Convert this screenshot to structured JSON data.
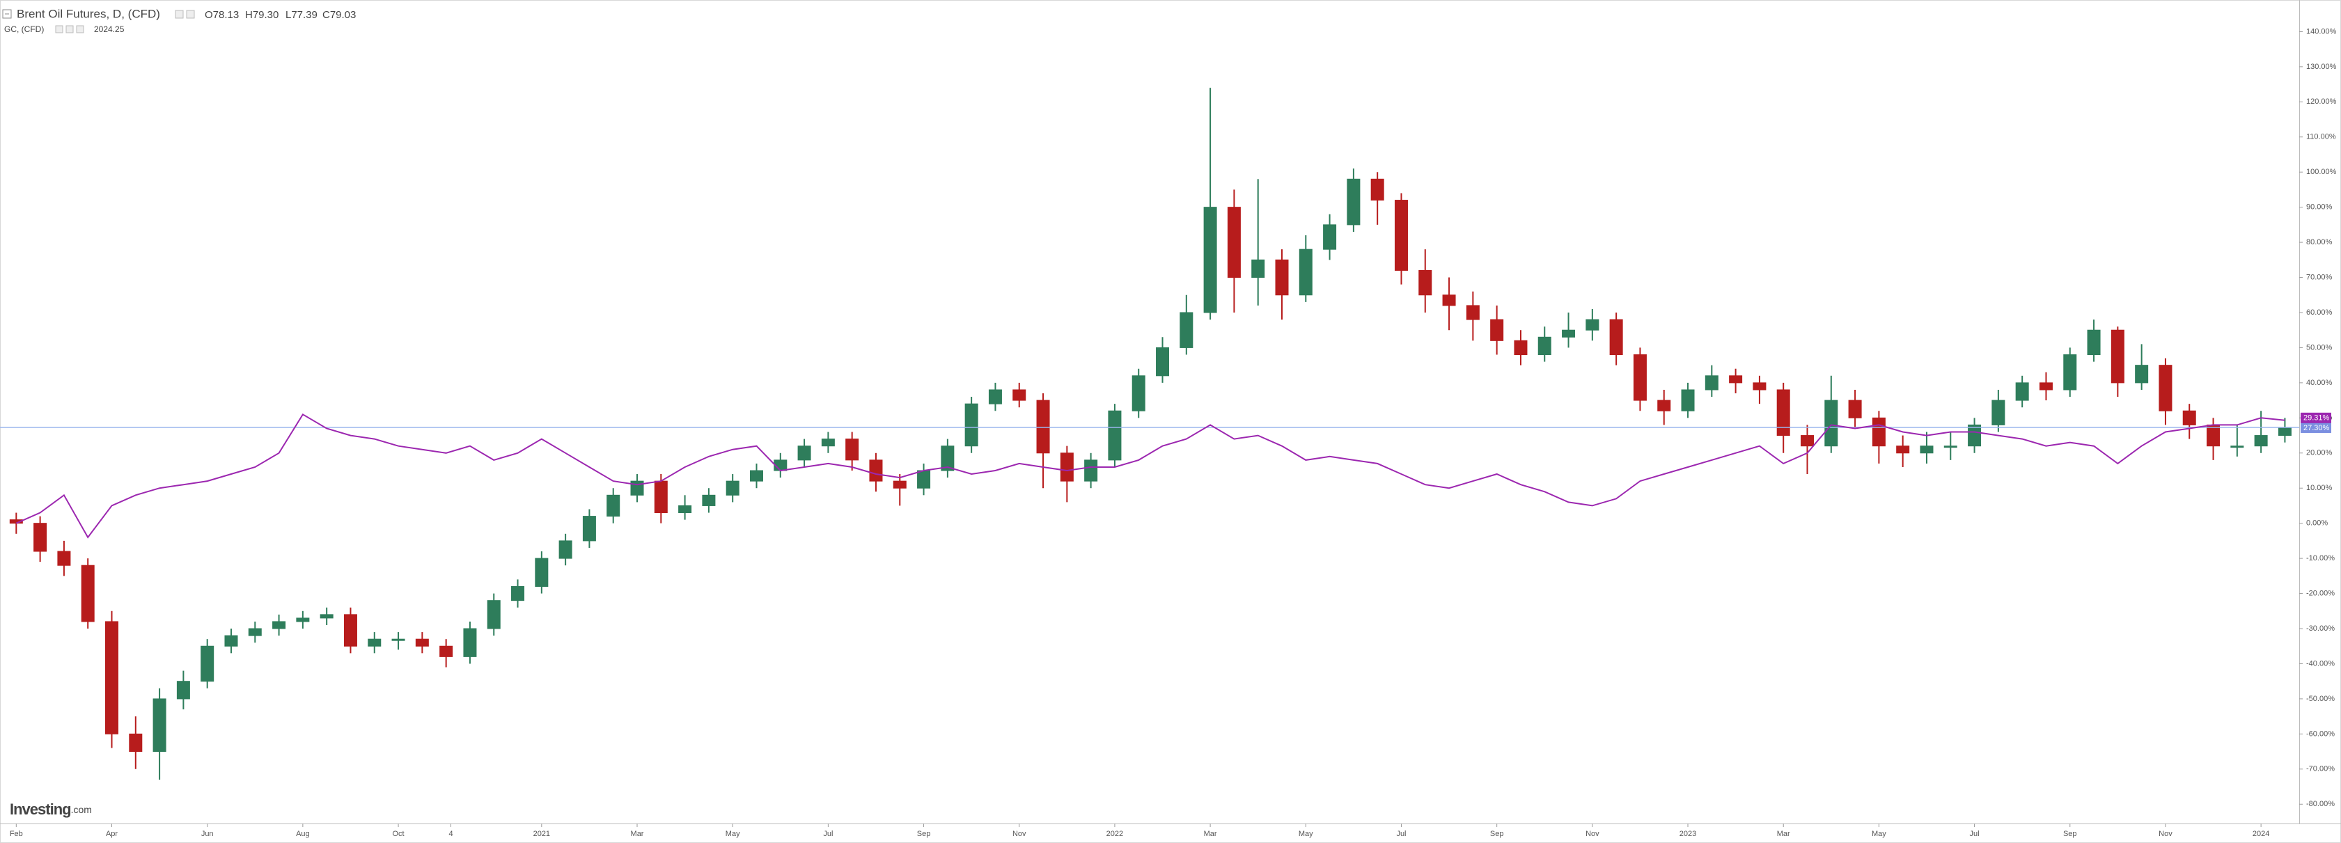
{
  "chart_data": {
    "type": "candlestick",
    "title": "Brent Oil Futures, D, (CFD)",
    "ohlc_labels": [
      "O78.13",
      "H79.30",
      "L77.39",
      "C79.03"
    ],
    "watermark": [
      "Investing",
      ".com"
    ],
    "x": [
      0,
      0.5,
      1,
      1.5,
      2,
      2.5,
      3,
      3.5,
      4,
      4.5,
      5,
      5.5,
      6,
      6.5,
      7,
      7.5,
      8,
      8.5,
      9,
      9.5,
      10,
      10.5,
      11,
      11.5,
      12,
      12.5,
      13,
      13.5,
      14,
      14.5,
      15,
      15.5,
      16,
      16.5,
      17,
      17.5,
      18,
      18.5,
      19,
      19.5,
      20,
      20.5,
      21,
      21.5,
      22,
      22.5,
      23,
      23.5,
      24,
      24.5,
      25,
      25.5,
      26,
      26.5,
      27,
      27.5,
      28,
      28.5,
      29,
      29.5,
      30,
      30.5,
      31,
      31.5,
      32,
      32.5,
      33,
      33.5,
      34,
      34.5,
      35,
      35.5,
      36,
      36.5,
      37,
      37.5,
      38,
      38.5,
      39,
      39.5,
      40,
      40.5,
      41,
      41.5,
      42,
      42.5,
      43,
      43.5,
      44,
      44.5,
      45,
      45.5,
      46,
      46.5,
      47,
      47.5
    ],
    "series": [
      {
        "name": "Brent Oil Futures, D, (CFD)",
        "type": "candlestick",
        "up_color": "#2e7d5b",
        "down_color": "#b71c1c",
        "line_color": "#9bb5ee",
        "label_color": "#7b8fe0",
        "last_label": "27.30%",
        "open": [
          1,
          0,
          -8,
          -12,
          -28,
          -60,
          -65,
          -50,
          -45,
          -35,
          -32,
          -30,
          -28,
          -27,
          -26,
          -35,
          -33,
          -33,
          -35,
          -38,
          -30,
          -22,
          -18,
          -10,
          -5,
          2,
          8,
          12,
          3,
          5,
          8,
          12,
          15,
          18,
          22,
          24,
          18,
          12,
          10,
          15,
          22,
          34,
          38,
          35,
          20,
          12,
          18,
          32,
          42,
          50,
          60,
          90,
          70,
          75,
          65,
          78,
          85,
          98,
          92,
          72,
          65,
          62,
          58,
          52,
          48,
          53,
          55,
          58,
          48,
          35,
          32,
          38,
          42,
          40,
          38,
          25,
          22,
          35,
          30,
          22,
          20,
          22,
          22,
          28,
          35,
          40,
          38,
          48,
          55,
          40,
          45,
          32,
          28,
          22,
          22,
          25
        ],
        "high": [
          3,
          2,
          -5,
          -10,
          -25,
          -55,
          -47,
          -42,
          -33,
          -30,
          -28,
          -26,
          -25,
          -24,
          -24,
          -31,
          -31,
          -31,
          -33,
          -28,
          -20,
          -16,
          -8,
          -3,
          4,
          10,
          14,
          14,
          8,
          10,
          14,
          17,
          20,
          24,
          26,
          26,
          20,
          14,
          17,
          24,
          36,
          40,
          40,
          37,
          22,
          20,
          34,
          44,
          53,
          65,
          124,
          95,
          98,
          78,
          82,
          88,
          101,
          100,
          94,
          78,
          70,
          66,
          62,
          55,
          56,
          60,
          61,
          60,
          50,
          38,
          40,
          45,
          44,
          42,
          40,
          28,
          42,
          38,
          32,
          25,
          26,
          26,
          30,
          38,
          42,
          43,
          50,
          58,
          56,
          51,
          47,
          34,
          30,
          28,
          32,
          30
        ],
        "low": [
          -3,
          -11,
          -15,
          -30,
          -64,
          -70,
          -73,
          -53,
          -47,
          -37,
          -34,
          -32,
          -30,
          -29,
          -37,
          -37,
          -36,
          -37,
          -41,
          -40,
          -32,
          -24,
          -20,
          -12,
          -7,
          0,
          6,
          0,
          1,
          3,
          6,
          10,
          13,
          16,
          20,
          15,
          9,
          5,
          8,
          13,
          20,
          32,
          33,
          10,
          6,
          10,
          16,
          30,
          40,
          48,
          58,
          60,
          62,
          58,
          63,
          75,
          83,
          85,
          68,
          60,
          55,
          52,
          48,
          45,
          46,
          50,
          52,
          45,
          32,
          28,
          30,
          36,
          37,
          34,
          20,
          14,
          20,
          27,
          17,
          16,
          17,
          18,
          20,
          26,
          33,
          35,
          36,
          46,
          36,
          38,
          28,
          24,
          18,
          19,
          20,
          23
        ],
        "close": [
          0,
          -8,
          -12,
          -28,
          -60,
          -65,
          -50,
          -45,
          -35,
          -32,
          -30,
          -28,
          -27,
          -26,
          -35,
          -33,
          -33,
          -35,
          -38,
          -30,
          -22,
          -18,
          -10,
          -5,
          2,
          8,
          12,
          3,
          5,
          8,
          12,
          15,
          18,
          22,
          24,
          18,
          12,
          10,
          15,
          22,
          34,
          38,
          35,
          20,
          12,
          18,
          32,
          42,
          50,
          60,
          90,
          70,
          75,
          65,
          78,
          85,
          98,
          92,
          72,
          65,
          62,
          58,
          52,
          48,
          53,
          55,
          58,
          48,
          35,
          32,
          38,
          42,
          40,
          38,
          25,
          22,
          35,
          30,
          22,
          20,
          22,
          22,
          28,
          35,
          40,
          38,
          48,
          55,
          40,
          45,
          32,
          28,
          22,
          22,
          25,
          27.3
        ]
      },
      {
        "name": "GC, (CFD)",
        "type": "line",
        "color": "#9c27b0",
        "price": "2024.25",
        "last_label": "29.31%",
        "values": [
          0,
          3,
          8,
          -4,
          5,
          8,
          10,
          11,
          12,
          14,
          16,
          20,
          31,
          27,
          25,
          24,
          22,
          21,
          20,
          22,
          18,
          20,
          24,
          20,
          16,
          12,
          11,
          12,
          16,
          19,
          21,
          22,
          15,
          16,
          17,
          16,
          14,
          13,
          15,
          16,
          14,
          15,
          17,
          16,
          15,
          16,
          16,
          18,
          22,
          24,
          28,
          24,
          25,
          22,
          18,
          19,
          18,
          17,
          14,
          11,
          10,
          12,
          14,
          11,
          9,
          6,
          5,
          7,
          12,
          14,
          16,
          18,
          20,
          22,
          17,
          20,
          28,
          27,
          28,
          26,
          25,
          26,
          26,
          25,
          24,
          22,
          23,
          22,
          17,
          22,
          26,
          27,
          28,
          28,
          30,
          29.31
        ]
      }
    ],
    "xlim": [
      -0.34,
      47.8
    ],
    "xticks": [
      {
        "value": 0,
        "label": "Feb"
      },
      {
        "value": 2,
        "label": "Apr"
      },
      {
        "value": 4,
        "label": "Jun"
      },
      {
        "value": 6,
        "label": "Aug"
      },
      {
        "value": 8,
        "label": "Oct"
      },
      {
        "value": 9.1,
        "label": "4"
      },
      {
        "value": 11,
        "label": "2021"
      },
      {
        "value": 13,
        "label": "Mar"
      },
      {
        "value": 15,
        "label": "May"
      },
      {
        "value": 17,
        "label": "Jul"
      },
      {
        "value": 19,
        "label": "Sep"
      },
      {
        "value": 21,
        "label": "Nov"
      },
      {
        "value": 23,
        "label": "2022"
      },
      {
        "value": 25,
        "label": "Mar"
      },
      {
        "value": 27,
        "label": "May"
      },
      {
        "value": 29,
        "label": "Jul"
      },
      {
        "value": 31,
        "label": "Sep"
      },
      {
        "value": 33,
        "label": "Nov"
      },
      {
        "value": 35,
        "label": "2023"
      },
      {
        "value": 37,
        "label": "Mar"
      },
      {
        "value": 39,
        "label": "May"
      },
      {
        "value": 41,
        "label": "Jul"
      },
      {
        "value": 43,
        "label": "Sep"
      },
      {
        "value": 45,
        "label": "Nov"
      },
      {
        "value": 47,
        "label": "2024"
      }
    ],
    "ylim": [
      -85.5,
      149
    ],
    "yticks": [
      {
        "value": 140,
        "label": "140.00%"
      },
      {
        "value": 130,
        "label": "130.00%"
      },
      {
        "value": 120,
        "label": "120.00%"
      },
      {
        "value": 110,
        "label": "110.00%"
      },
      {
        "value": 100,
        "label": "100.00%"
      },
      {
        "value": 90,
        "label": "90.00%"
      },
      {
        "value": 80,
        "label": "80.00%"
      },
      {
        "value": 70,
        "label": "70.00%"
      },
      {
        "value": 60,
        "label": "60.00%"
      },
      {
        "value": 50,
        "label": "50.00%"
      },
      {
        "value": 40,
        "label": "40.00%"
      },
      {
        "value": 30,
        "label": "30.00%"
      },
      {
        "value": 20,
        "label": "20.00%"
      },
      {
        "value": 10,
        "label": "10.00%"
      },
      {
        "value": 0,
        "label": "0.00%"
      },
      {
        "value": -10,
        "label": "-10.00%"
      },
      {
        "value": -20,
        "label": "-20.00%"
      },
      {
        "value": -30,
        "label": "-30.00%"
      },
      {
        "value": -40,
        "label": "-40.00%"
      },
      {
        "value": -50,
        "label": "-50.00%"
      },
      {
        "value": -60,
        "label": "-60.00%"
      },
      {
        "value": -70,
        "label": "-70.00%"
      },
      {
        "value": -80,
        "label": "-80.00%"
      }
    ]
  }
}
